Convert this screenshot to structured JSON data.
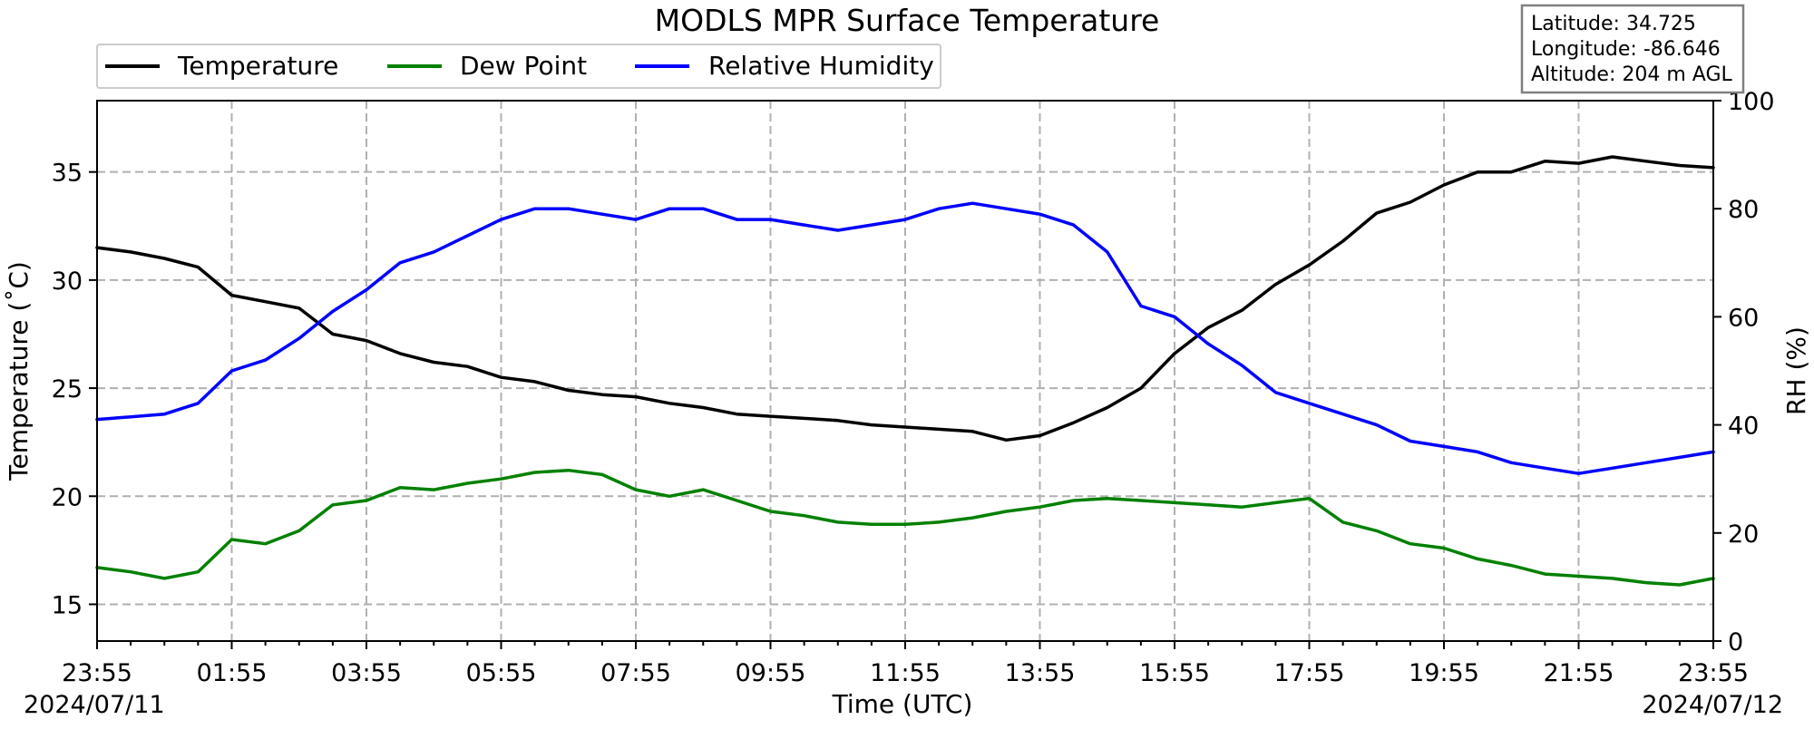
{
  "chart_data": {
    "type": "line",
    "title": "MODLS MPR Surface Temperature",
    "xlabel": "Time (UTC)",
    "ylabel_left": "Temperature ($^\\circ$C)",
    "ylabel_left_text": "Temperature (˚C)",
    "ylabel_right": "RH (%)",
    "x_ticks": [
      "23:55",
      "01:55",
      "03:55",
      "05:55",
      "07:55",
      "09:55",
      "11:55",
      "13:55",
      "15:55",
      "17:55",
      "19:55",
      "21:55",
      "23:55"
    ],
    "x_range_hours": [
      0,
      24
    ],
    "date_start": "2024/07/11",
    "date_end": "2024/07/12",
    "ylim_left": [
      13.3,
      38.3
    ],
    "yticks_left": [
      15,
      20,
      25,
      30,
      35
    ],
    "ylim_right": [
      0,
      100
    ],
    "yticks_right": [
      0,
      20,
      40,
      60,
      80,
      100
    ],
    "grid": true,
    "legend_position": "top-left",
    "info_box": {
      "latitude": "Latitude: 34.725",
      "longitude": "Longitude: -86.646",
      "altitude": "Altitude: 204 m AGL"
    },
    "series": [
      {
        "name": "Temperature",
        "axis": "left",
        "color": "#000000",
        "hours": [
          0,
          0.5,
          1,
          1.5,
          2,
          2.5,
          3,
          3.5,
          4,
          4.5,
          5,
          5.5,
          6,
          6.5,
          7,
          7.5,
          8,
          8.5,
          9,
          9.5,
          10,
          10.5,
          11,
          11.5,
          12,
          12.5,
          13,
          13.5,
          14,
          14.5,
          15,
          15.5,
          16,
          16.5,
          17,
          17.5,
          18,
          18.5,
          19,
          19.5,
          20,
          20.5,
          21,
          21.5,
          22,
          22.5,
          23,
          23.5,
          24
        ],
        "values": [
          31.5,
          31.3,
          31.0,
          30.6,
          29.3,
          29.0,
          28.7,
          27.5,
          27.2,
          26.6,
          26.2,
          26.0,
          25.5,
          25.3,
          24.9,
          24.7,
          24.6,
          24.3,
          24.1,
          23.8,
          23.7,
          23.6,
          23.5,
          23.3,
          23.2,
          23.1,
          23.0,
          22.6,
          22.8,
          23.4,
          24.1,
          25.0,
          26.6,
          27.8,
          28.6,
          29.8,
          30.7,
          31.8,
          33.1,
          33.6,
          34.4,
          35.0,
          35.0,
          35.5,
          35.4,
          35.7,
          35.5,
          35.3,
          35.2
        ]
      },
      {
        "name": "Dew Point",
        "axis": "left",
        "color": "#008000",
        "hours": [
          0,
          0.5,
          1,
          1.5,
          2,
          2.5,
          3,
          3.5,
          4,
          4.5,
          5,
          5.5,
          6,
          6.5,
          7,
          7.5,
          8,
          8.5,
          9,
          9.5,
          10,
          10.5,
          11,
          11.5,
          12,
          12.5,
          13,
          13.5,
          14,
          14.5,
          15,
          15.5,
          16,
          16.5,
          17,
          17.5,
          18,
          18.5,
          19,
          19.5,
          20,
          20.5,
          21,
          21.5,
          22,
          22.5,
          23,
          23.5,
          24
        ],
        "values": [
          16.7,
          16.5,
          16.2,
          16.5,
          18.0,
          17.8,
          18.4,
          19.6,
          19.8,
          20.4,
          20.3,
          20.6,
          20.8,
          21.1,
          21.2,
          21.0,
          20.3,
          20.0,
          20.3,
          19.8,
          19.3,
          19.1,
          18.8,
          18.7,
          18.7,
          18.8,
          19.0,
          19.3,
          19.5,
          19.8,
          19.9,
          19.8,
          19.7,
          19.6,
          19.5,
          19.7,
          19.9,
          18.8,
          18.4,
          17.8,
          17.6,
          17.1,
          16.8,
          16.4,
          16.3,
          16.2,
          16.0,
          15.9,
          16.2
        ]
      },
      {
        "name": "Relative Humidity",
        "axis": "right",
        "color": "#0000ff",
        "hours": [
          0,
          0.5,
          1,
          1.5,
          2,
          2.5,
          3,
          3.5,
          4,
          4.5,
          5,
          5.5,
          6,
          6.5,
          7,
          7.5,
          8,
          8.5,
          9,
          9.5,
          10,
          10.5,
          11,
          11.5,
          12,
          12.5,
          13,
          13.5,
          14,
          14.5,
          15,
          15.5,
          16,
          16.5,
          17,
          17.5,
          18,
          18.5,
          19,
          19.5,
          20,
          20.5,
          21,
          21.5,
          22,
          22.5,
          23,
          23.5,
          24
        ],
        "values": [
          41,
          41.5,
          42,
          44,
          50,
          52,
          56,
          61,
          65,
          70,
          72,
          75,
          78,
          80,
          80,
          79,
          78,
          80,
          80,
          78,
          78,
          77,
          76,
          77,
          78,
          80,
          81,
          80,
          79,
          77,
          72,
          62,
          60,
          55,
          51,
          46,
          44,
          42,
          40,
          37,
          36,
          35,
          33,
          32,
          31,
          32,
          33,
          34,
          35
        ]
      }
    ]
  }
}
